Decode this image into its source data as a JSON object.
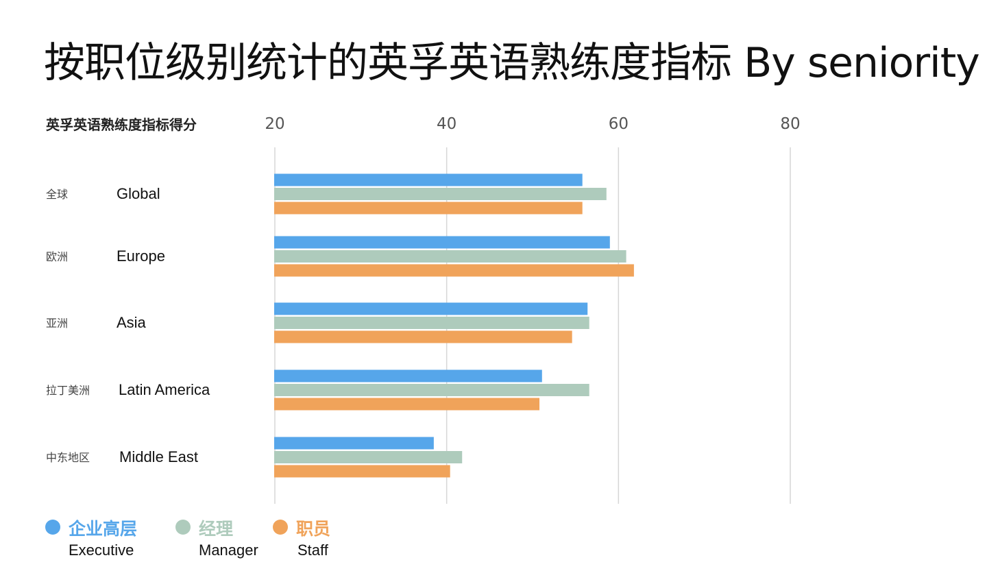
{
  "chart_data": {
    "type": "bar",
    "orientation": "horizontal",
    "title": "按职位级别统计的英孚英语熟练度指标 By seniority",
    "xlabel": "英孚英语熟练度指标得分",
    "xlim": [
      20,
      80
    ],
    "ticks": [
      "20",
      "40",
      "60",
      "80"
    ],
    "grid": true,
    "categories": [
      {
        "cn": "全球",
        "en": "Global"
      },
      {
        "cn": "欧洲",
        "en": "Europe"
      },
      {
        "cn": "亚洲",
        "en": "Asia"
      },
      {
        "cn": "拉丁美洲",
        "en": "Latin America"
      },
      {
        "cn": "中东地区",
        "en": "Middle East"
      }
    ],
    "series": [
      {
        "name": "企业高层",
        "name_en": "Executive",
        "color": "#56a6ea",
        "values": [
          55.8,
          59.0,
          56.4,
          51.1,
          38.5
        ]
      },
      {
        "name": "经理",
        "name_en": "Manager",
        "color": "#aecbbc",
        "values": [
          58.6,
          60.9,
          56.6,
          56.6,
          41.8
        ]
      },
      {
        "name": "职员",
        "name_en": "Staff",
        "color": "#f0a35a",
        "values": [
          55.8,
          61.8,
          54.6,
          50.8,
          40.4
        ]
      }
    ],
    "legend": "bottom-left"
  }
}
